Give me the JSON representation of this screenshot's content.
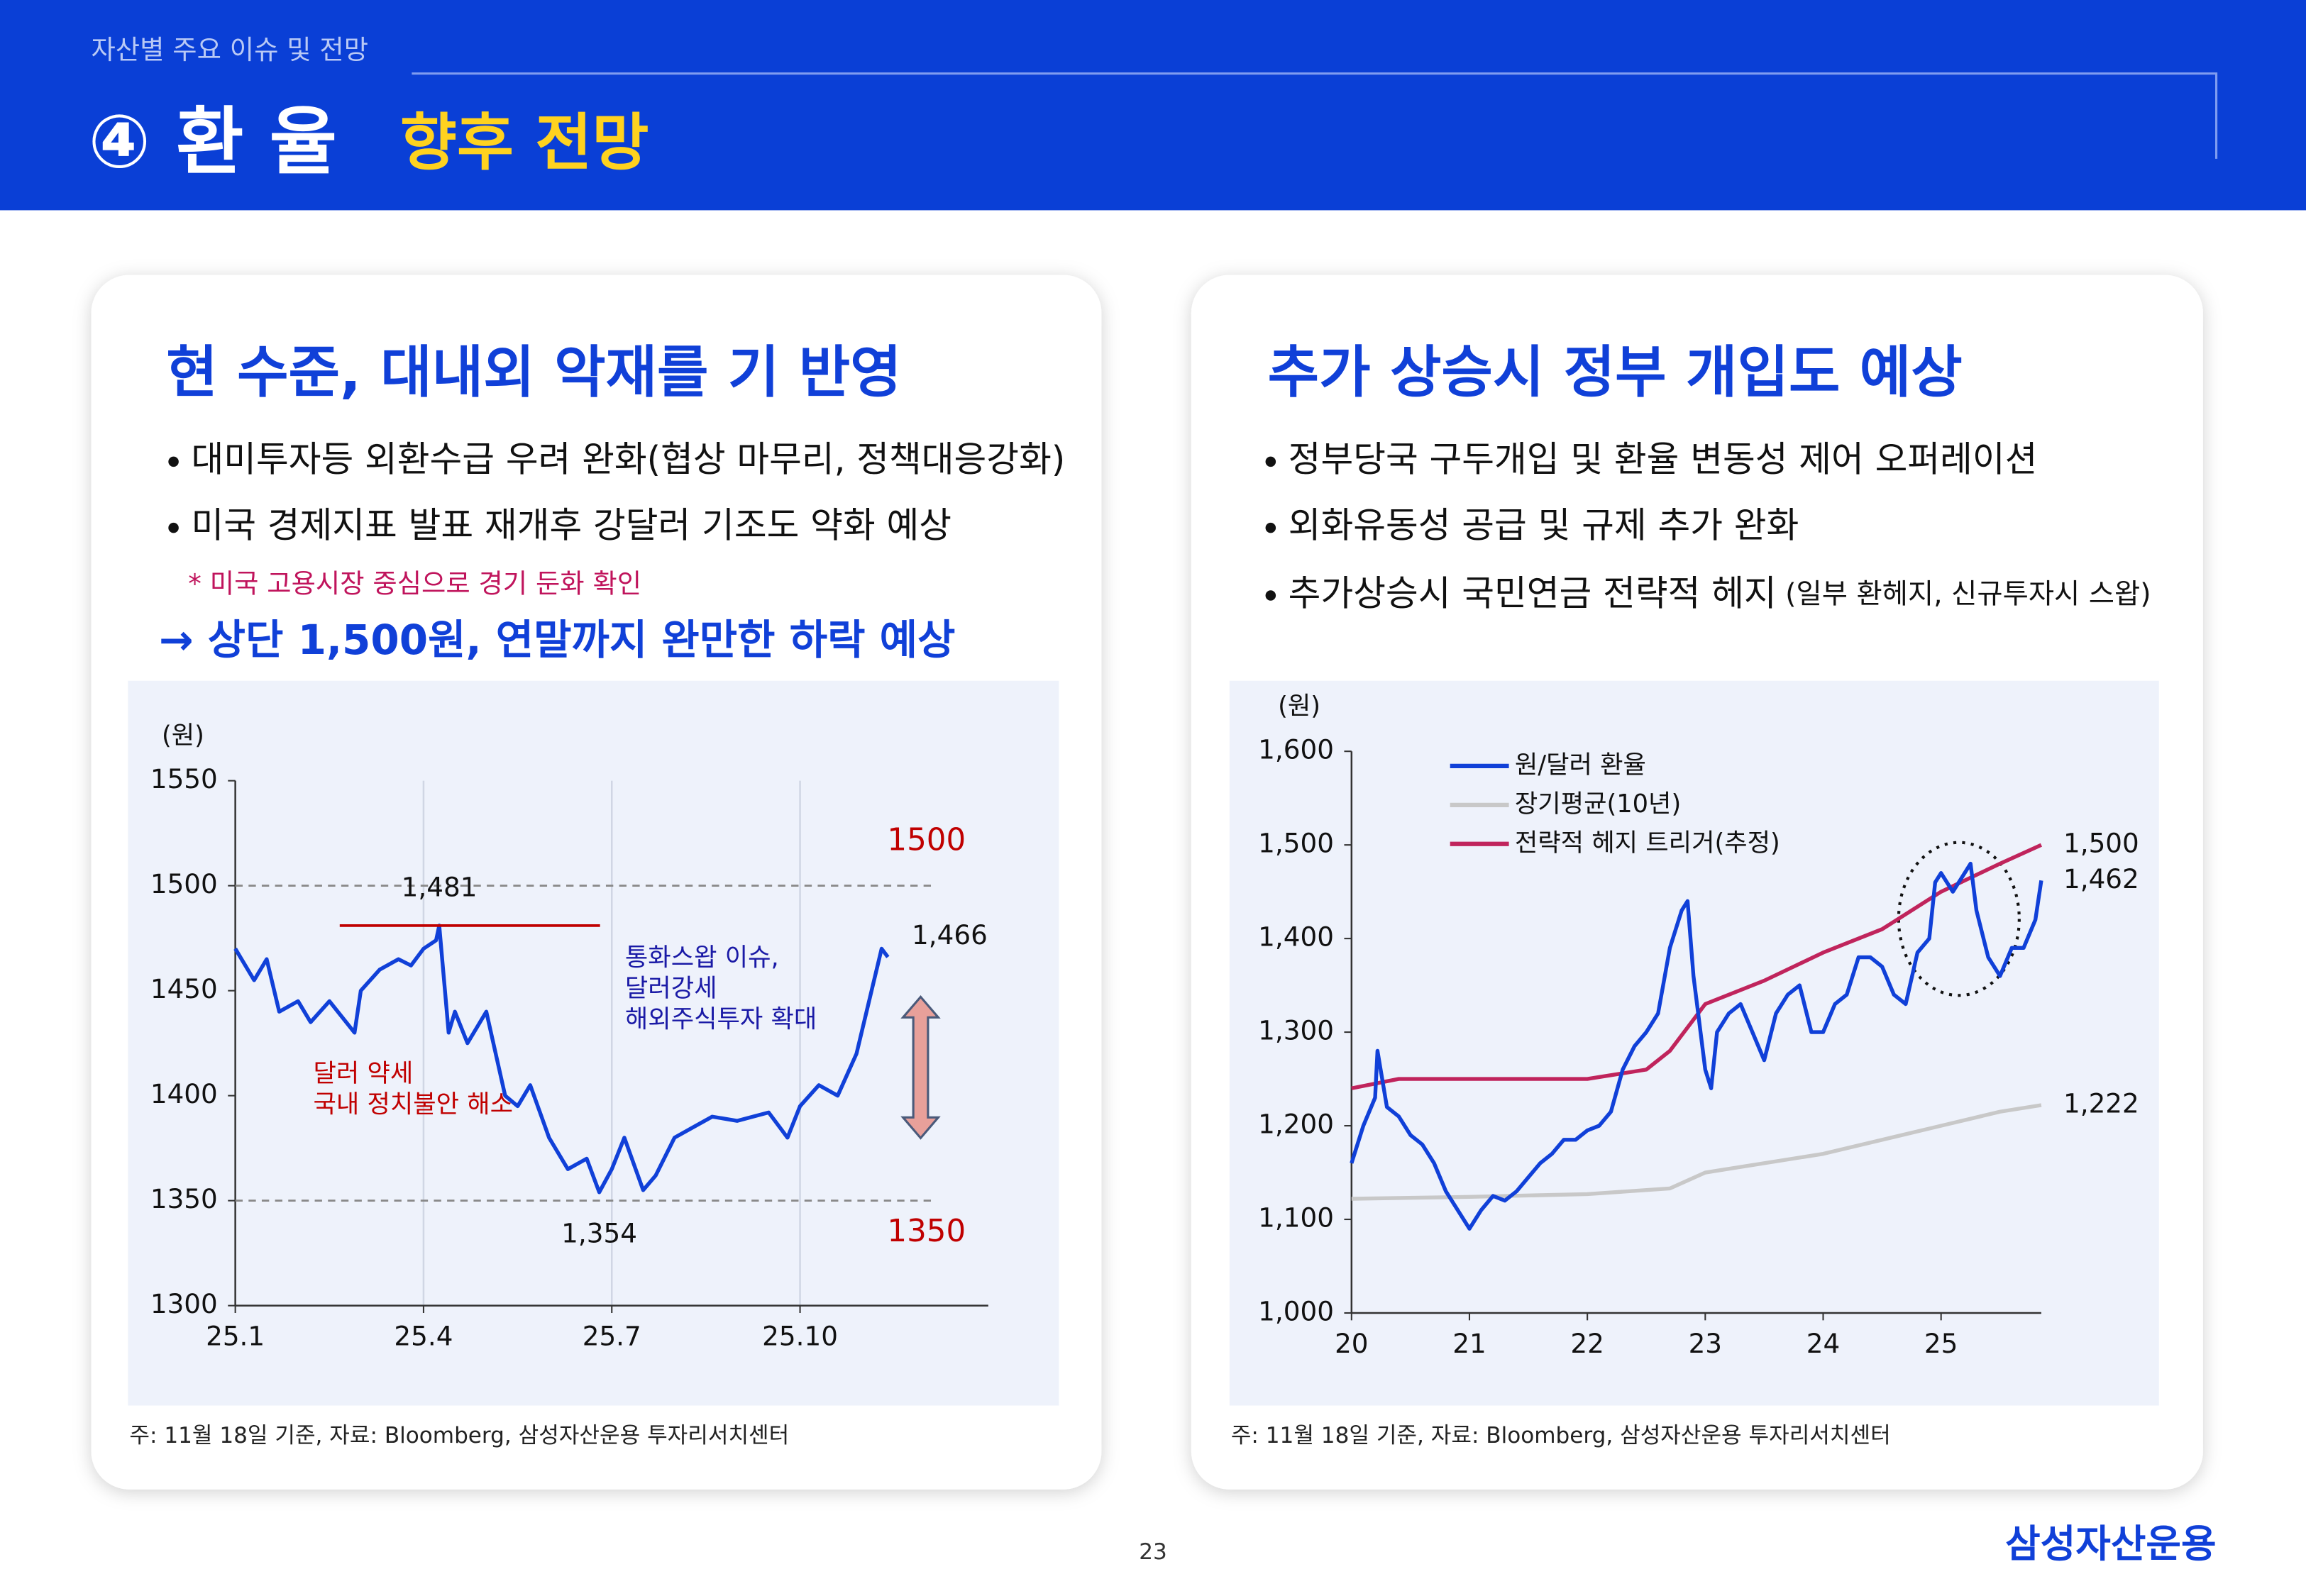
{
  "header": {
    "section": "자산별 주요 이슈 및 전망",
    "number": "④ 환 율",
    "title": "향후 전망"
  },
  "panels": [
    {
      "title": "현 수준, 대내외 악재를 기 반영",
      "bullets": [
        "대미투자등 외환수급 우려 완화(협상 마무리, 정책대응강화)",
        "미국 경제지표 발표 재개후 강달러 기조도 약화 예상"
      ],
      "note": "* 미국 고용시장 중심으로 경기 둔화 확인",
      "conclusion": "→ 상단 1,500원, 연말까지 완만한 하락 예상",
      "chart": {
        "type": "line",
        "unit": "(원)",
        "grid": true,
        "xlim": [
          0,
          12
        ],
        "xticks": [
          {
            "value": 0,
            "label": "25.1"
          },
          {
            "value": 3,
            "label": "25.4"
          },
          {
            "value": 6,
            "label": "25.7"
          },
          {
            "value": 9,
            "label": "25.10"
          }
        ],
        "ylim": [
          1300,
          1550
        ],
        "yticks": [
          1300,
          1350,
          1400,
          1450,
          1500,
          1550
        ],
        "reference_lines": [
          1500,
          1350
        ],
        "series": [
          {
            "color": "#1040d8",
            "x": [
              0,
              0.3,
              0.5,
              0.7,
              1.0,
              1.2,
              1.5,
              1.9,
              2.0,
              2.3,
              2.6,
              2.8,
              3.0,
              3.2,
              3.25,
              3.4,
              3.5,
              3.7,
              4.0,
              4.3,
              4.5,
              4.7,
              5.0,
              5.3,
              5.6,
              5.8,
              6.0,
              6.2,
              6.5,
              6.7,
              7.0,
              7.3,
              7.6,
              8.0,
              8.5,
              8.8,
              9.0,
              9.3,
              9.6,
              9.9,
              10.1,
              10.3,
              10.4
            ],
            "values": [
              1470,
              1455,
              1465,
              1440,
              1445,
              1435,
              1445,
              1430,
              1450,
              1460,
              1465,
              1462,
              1470,
              1474,
              1481,
              1430,
              1440,
              1425,
              1440,
              1400,
              1395,
              1405,
              1380,
              1365,
              1370,
              1354,
              1365,
              1380,
              1355,
              1362,
              1380,
              1385,
              1390,
              1388,
              1392,
              1380,
              1395,
              1405,
              1400,
              1420,
              1445,
              1470,
              1466
            ]
          }
        ],
        "annotations": [
          {
            "text": "1,481",
            "value": 1481,
            "x": 3.25
          },
          {
            "text": "1,354",
            "value": 1354,
            "x": 5.8
          },
          {
            "text": "1,466",
            "value": 1466,
            "x": 10.4
          }
        ],
        "notes": [
          {
            "lines": [
              "통화스왑 이슈,",
              "달러강세",
              "해외주식투자 확대"
            ],
            "color": "#1a1aa6"
          },
          {
            "lines": [
              "달러 약세",
              "국내 정치불안 해소"
            ],
            "color": "#c00000"
          }
        ]
      },
      "source": "주: 11월 18일 기준, 자료: Bloomberg, 삼성자산운용 투자리서치센터"
    },
    {
      "title": "추가 상승시  정부 개입도 예상",
      "bullets": [
        "정부당국 구두개입 및 환율 변동성 제어 오퍼레이션",
        "외화유동성 공급 및 규제 추가 완화",
        "추가상승시 국민연금 전략적 헤지"
      ],
      "bullet_small": "(일부 환헤지, 신규투자시 스왑)",
      "chart": {
        "type": "line",
        "unit": "(원)",
        "grid": false,
        "legend": "top-left",
        "xlim": [
          20,
          25.85
        ],
        "xticks": [
          20,
          21,
          22,
          23,
          24,
          25
        ],
        "ylim": [
          1000,
          1600
        ],
        "yticks": [
          {
            "value": 1000,
            "label": "1,000"
          },
          {
            "value": 1100,
            "label": "1,100"
          },
          {
            "value": 1200,
            "label": "1,200"
          },
          {
            "value": 1300,
            "label": "1,300"
          },
          {
            "value": 1400,
            "label": "1,400"
          },
          {
            "value": 1500,
            "label": "1,500"
          },
          {
            "value": 1600,
            "label": "1,600"
          }
        ],
        "series": [
          {
            "name": "원/달러 환율",
            "color": "#1040d8",
            "x": [
              20.0,
              20.1,
              20.2,
              20.22,
              20.3,
              20.4,
              20.5,
              20.6,
              20.7,
              20.8,
              20.9,
              21.0,
              21.1,
              21.2,
              21.3,
              21.4,
              21.5,
              21.6,
              21.7,
              21.8,
              21.9,
              22.0,
              22.1,
              22.2,
              22.3,
              22.4,
              22.5,
              22.6,
              22.7,
              22.8,
              22.85,
              22.9,
              23.0,
              23.05,
              23.1,
              23.2,
              23.3,
              23.4,
              23.5,
              23.6,
              23.7,
              23.8,
              23.9,
              24.0,
              24.1,
              24.2,
              24.3,
              24.4,
              24.5,
              24.6,
              24.7,
              24.8,
              24.9,
              24.95,
              25.0,
              25.1,
              25.2,
              25.25,
              25.3,
              25.4,
              25.5,
              25.6,
              25.7,
              25.8,
              25.85
            ],
            "values": [
              1160,
              1200,
              1230,
              1280,
              1220,
              1210,
              1190,
              1180,
              1160,
              1130,
              1110,
              1090,
              1110,
              1125,
              1120,
              1130,
              1145,
              1160,
              1170,
              1185,
              1185,
              1195,
              1200,
              1215,
              1260,
              1285,
              1300,
              1320,
              1390,
              1430,
              1440,
              1360,
              1260,
              1240,
              1300,
              1320,
              1330,
              1300,
              1270,
              1320,
              1340,
              1350,
              1300,
              1300,
              1330,
              1340,
              1380,
              1380,
              1370,
              1340,
              1330,
              1385,
              1400,
              1460,
              1470,
              1450,
              1470,
              1480,
              1430,
              1380,
              1360,
              1390,
              1390,
              1420,
              1462
            ]
          },
          {
            "name": "장기평균(10년)",
            "color": "#c8c8c8",
            "x": [
              20,
              21,
              22,
              22.7,
              23,
              24,
              24.5,
              25,
              25.5,
              25.85
            ],
            "values": [
              1122,
              1124,
              1127,
              1133,
              1150,
              1170,
              1185,
              1200,
              1215,
              1222
            ]
          },
          {
            "name": "전략적 헤지 트리거(추정)",
            "color": "#c0245c",
            "x": [
              20,
              20.4,
              21,
              22,
              22.5,
              22.7,
              23,
              23.5,
              24,
              24.5,
              25,
              25.5,
              25.85
            ],
            "values": [
              1240,
              1250,
              1250,
              1250,
              1260,
              1280,
              1330,
              1355,
              1385,
              1410,
              1450,
              1480,
              1500
            ]
          }
        ],
        "annotations": [
          {
            "text": "1,500",
            "value": 1500
          },
          {
            "text": "1,462",
            "value": 1462
          },
          {
            "text": "1,222",
            "value": 1222
          }
        ]
      },
      "source": "주: 11월 18일 기준, 자료: Bloomberg, 삼성자산운용 투자리서치센터"
    }
  ],
  "page": "23",
  "logo": "삼성자산운용"
}
